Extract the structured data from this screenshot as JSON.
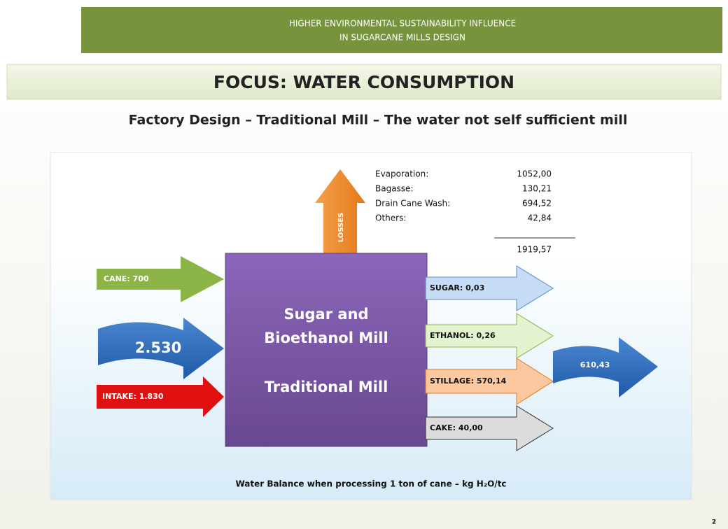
{
  "header": {
    "lines": [
      "HIGHER ENVIRONMENTAL  SUSTAINABILITY  INFLUENCE",
      "IN SUGARCANE MILLS DESIGN"
    ]
  },
  "focus": "FOCUS: WATER CONSUMPTION",
  "subtitle": "Factory Design – Traditional Mill  – The water not self sufficient mill",
  "losses": {
    "arrow_label": "LOSSES",
    "items": [
      {
        "label": "Evaporation:",
        "value": "1052,00"
      },
      {
        "label": "Bagasse:",
        "value": "130,21"
      },
      {
        "label": "Drain Cane Wash:",
        "value": "694,52"
      },
      {
        "label": "Others:",
        "value": "42,84"
      }
    ],
    "total": "1919,57"
  },
  "inputs": {
    "cane": "CANE: 700",
    "total": "2.530",
    "intake": "INTAKE: 1.830"
  },
  "mill": {
    "lines": [
      "Sugar and",
      "Bioethanol Mill",
      "Traditional Mill"
    ]
  },
  "outputs": {
    "items": [
      "SUGAR: 0,03",
      "ETHANOL: 0,26",
      "STILLAGE: 570,14",
      "CAKE: 40,00"
    ],
    "total": "610,43"
  },
  "caption": "Water Balance when processing 1 ton of cane – kg H₂O/tc",
  "page_number": "2"
}
